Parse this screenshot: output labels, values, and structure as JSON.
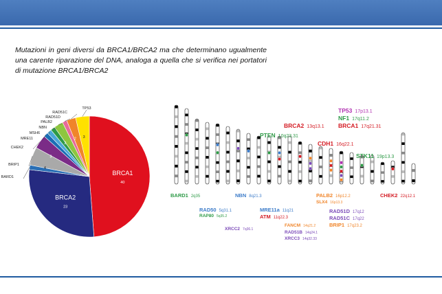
{
  "caption": "Mutazioni  in geni diversi da BRCA1/BRCA2 ma che determinano ugualmente una carente riparazione del DNA, analoga a quella che si verifica nei portatori di mutazione BRCA1/BRCA2",
  "chart_data": {
    "type": "pie",
    "slices": [
      {
        "label": "BRCA1",
        "value": 40,
        "color": "#e0101e"
      },
      {
        "label": "BRCA2",
        "value": 23,
        "color": "#252a80"
      },
      {
        "label": "BARD1",
        "value": 1,
        "color": "#2a6fb5"
      },
      {
        "label": "BRIP1",
        "value": 4,
        "color": "#a9a9a9"
      },
      {
        "label": "CHEK2",
        "value": 3,
        "color": "#7b2c87"
      },
      {
        "label": "MRE11",
        "value": 1,
        "color": "#1b6fb5"
      },
      {
        "label": "MSH6",
        "value": 1,
        "color": "#4aa8d8"
      },
      {
        "label": "NBN",
        "value": 1,
        "color": "#2e9a47"
      },
      {
        "label": "PALB2",
        "value": 2,
        "color": "#8ec63f"
      },
      {
        "label": "RAD51D",
        "value": 1,
        "color": "#e86a9a"
      },
      {
        "label": "RAD51C",
        "value": 2,
        "color": "#f0852a"
      },
      {
        "label": "TP53",
        "value": 3,
        "color": "#ffe100"
      }
    ],
    "value_labels": {
      "BRCA1": "40",
      "BRCA2": "23",
      "BRIP1": "4",
      "CHEK2": "3",
      "PALB2": "2",
      "RAD51C": "2",
      "TP53": "3"
    }
  },
  "genes": [
    {
      "name": "TP53",
      "loc": "17p13.1",
      "color": "#b030b0",
      "size": 8.5
    },
    {
      "name": "NF1",
      "loc": "17q11.2",
      "color": "#2e9a47",
      "size": 8.5
    },
    {
      "name": "BRCA1",
      "loc": "17q21.31",
      "color": "#d41c24",
      "size": 8.5
    },
    {
      "name": "BRCA2",
      "loc": "13q13.1",
      "color": "#d41c24",
      "size": 8.5
    },
    {
      "name": "PTEN",
      "loc": "10q23.31",
      "color": "#2e9a47",
      "size": 8.5
    },
    {
      "name": "CDH1",
      "loc": "16q22.1",
      "color": "#d41c24",
      "size": 8.5
    },
    {
      "name": "STK11",
      "loc": "19p13.3",
      "color": "#2e9a47",
      "size": 8.5
    },
    {
      "name": "BARD1",
      "loc": "2q35",
      "color": "#2e9a47",
      "size": 7.5
    },
    {
      "name": "NBN",
      "loc": "8q21.3",
      "color": "#3d7cc9",
      "size": 7.5
    },
    {
      "name": "PALB2",
      "loc": "16p12.2",
      "color": "#f0852a",
      "size": 7.5
    },
    {
      "name": "SLX4",
      "loc": "16p13.3",
      "color": "#f0852a",
      "size": 6.5
    },
    {
      "name": "CHEK2",
      "loc": "22q12.1",
      "color": "#d41c24",
      "size": 7.5
    },
    {
      "name": "RAD50",
      "loc": "5q31.1",
      "color": "#3d7cc9",
      "size": 7.5
    },
    {
      "name": "RAP80",
      "loc": "5q35.2",
      "color": "#2e9a47",
      "size": 6.5
    },
    {
      "name": "MRE11a",
      "loc": "11q21",
      "color": "#3d7cc9",
      "size": 7.5
    },
    {
      "name": "ATM",
      "loc": "11q22.3",
      "color": "#d41c24",
      "size": 7.5
    },
    {
      "name": "RAD51D",
      "loc": "17q12",
      "color": "#7b4ab8",
      "size": 7.5
    },
    {
      "name": "RAD51C",
      "loc": "17q22",
      "color": "#7b4ab8",
      "size": 7.5
    },
    {
      "name": "BRIP1",
      "loc": "17q23.2",
      "color": "#f0852a",
      "size": 7.5
    },
    {
      "name": "XRCC2",
      "loc": "7q36.1",
      "color": "#7b4ab8",
      "size": 6.5
    },
    {
      "name": "FANCM",
      "loc": "14q21.2",
      "color": "#f0852a",
      "size": 6.5
    },
    {
      "name": "RAD51B",
      "loc": "14q24.1",
      "color": "#7b4ab8",
      "size": 6.5
    },
    {
      "name": "XRCC3",
      "loc": "14q32.33",
      "color": "#7b4ab8",
      "size": 6.5
    }
  ]
}
